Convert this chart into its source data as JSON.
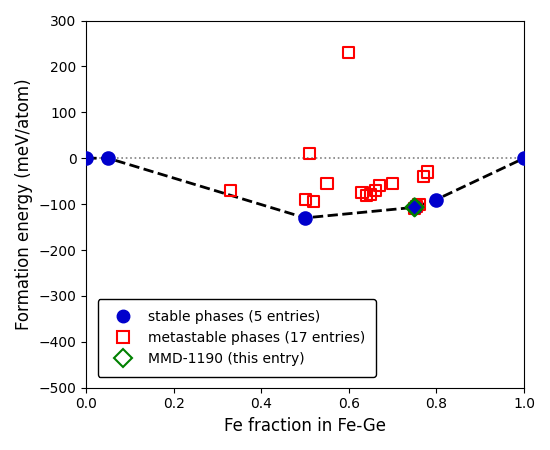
{
  "title": "",
  "xlabel": "Fe fraction in Fe-Ge",
  "ylabel": "Formation energy (meV/atom)",
  "xlim": [
    0.0,
    1.0
  ],
  "ylim": [
    -500,
    300
  ],
  "yticks": [
    -500,
    -400,
    -300,
    -200,
    -100,
    0,
    100,
    200,
    300
  ],
  "xticks": [
    0.0,
    0.2,
    0.4,
    0.6,
    0.8,
    1.0
  ],
  "stable_x": [
    0.0,
    0.05,
    0.5,
    0.75,
    0.8,
    1.0
  ],
  "stable_y": [
    0.0,
    0.0,
    -130,
    -107,
    -90,
    0.0
  ],
  "metastable_x": [
    0.33,
    0.5,
    0.51,
    0.52,
    0.55,
    0.6,
    0.63,
    0.64,
    0.65,
    0.66,
    0.67,
    0.7,
    0.75,
    0.755,
    0.76,
    0.77,
    0.78
  ],
  "metastable_y": [
    -70,
    -90,
    10,
    -95,
    -55,
    230,
    -75,
    -82,
    -80,
    -70,
    -60,
    -55,
    -110,
    -105,
    -100,
    -40,
    -30
  ],
  "mmd_x": [
    0.75
  ],
  "mmd_y": [
    -107
  ],
  "convex_hull_x": [
    0.0,
    0.05,
    0.5,
    0.75,
    0.8,
    1.0
  ],
  "convex_hull_y": [
    0.0,
    0.0,
    -130,
    -107,
    -90,
    0.0
  ],
  "dotted_line_y": 0,
  "stable_color": "#0000cc",
  "metastable_color": "red",
  "mmd_color": "green",
  "convex_hull_color": "black",
  "legend_labels": [
    "stable phases (5 entries)",
    "metastable phases (17 entries)",
    "MMD-1190 (this entry)"
  ],
  "stable_markersize": 9,
  "metastable_markersize": 8,
  "mmd_markersize": 9,
  "figsize": [
    5.5,
    4.5
  ],
  "dpi": 100
}
